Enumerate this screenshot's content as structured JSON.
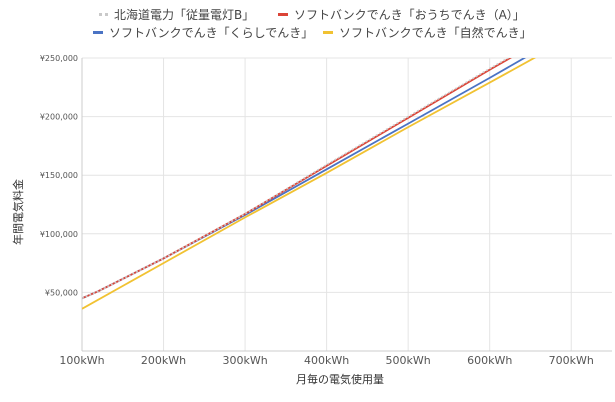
{
  "chart_data": {
    "type": "line",
    "title": "",
    "xlabel": "月毎の電気使用量",
    "ylabel": "年間電気料金",
    "xlim": [
      100,
      750
    ],
    "ylim": [
      0,
      250000
    ],
    "x_ticks": [
      100,
      200,
      300,
      400,
      500,
      600,
      700
    ],
    "x_tick_labels": [
      "100kWh",
      "200kWh",
      "300kWh",
      "400kWh",
      "500kWh",
      "600kWh",
      "700kWh"
    ],
    "y_ticks": [
      50000,
      100000,
      150000,
      200000,
      250000
    ],
    "y_tick_labels": [
      "¥50,000",
      "¥100,000",
      "¥150,000",
      "¥200,000",
      "¥250,000"
    ],
    "grid": true,
    "legend_position": "top",
    "series": [
      {
        "name": "北海道電力「従量電灯B」",
        "color": "#c9c9c9",
        "dashed": true,
        "x": [
          100,
          120,
          200,
          300,
          400,
          500,
          600,
          630
        ],
        "y": [
          45000,
          51000,
          79000,
          117000,
          159000,
          200000,
          241000,
          253000
        ]
      },
      {
        "name": "ソフトバンクでんき「おうちでんき（A）」",
        "color": "#db4437",
        "dashed": false,
        "x": [
          100,
          120,
          200,
          300,
          400,
          500,
          600,
          630
        ],
        "y": [
          45000,
          51000,
          79000,
          117000,
          158000,
          199000,
          240000,
          252000
        ]
      },
      {
        "name": "ソフトバンクでんき「くらしでんき」",
        "color": "#4a73c4",
        "dashed": false,
        "x": [
          100,
          120,
          200,
          300,
          400,
          500,
          600,
          645
        ],
        "y": [
          45000,
          51000,
          79000,
          116000,
          155000,
          194000,
          233000,
          251000
        ]
      },
      {
        "name": "ソフトバンクでんき「自然でんき」",
        "color": "#f1c232",
        "dashed": false,
        "x": [
          100,
          200,
          300,
          400,
          500,
          600,
          665
        ],
        "y": [
          36000,
          75000,
          114000,
          152000,
          191000,
          229000,
          254000
        ]
      }
    ]
  }
}
